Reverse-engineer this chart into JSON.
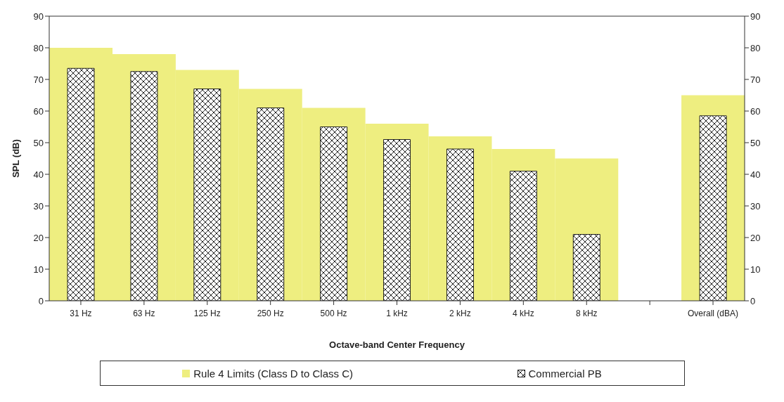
{
  "chart_data": {
    "type": "bar",
    "xlabel": "Octave-band Center Frequency",
    "ylabel": "SPL (dB)",
    "categories": [
      "31 Hz",
      "63 Hz",
      "125 Hz",
      "250 Hz",
      "500 Hz",
      "1 kHz",
      "2 kHz",
      "4 kHz",
      "8 kHz",
      null,
      "Overall (dBA)"
    ],
    "series": [
      {
        "name": "Rule 4 Limits (Class D to Class C)",
        "color": "#eeee80",
        "values": [
          80,
          78,
          73,
          67,
          61,
          56,
          52,
          48,
          45,
          null,
          65
        ]
      },
      {
        "name": "Commercial PB",
        "color": "#222222",
        "values": [
          73.5,
          72.5,
          67,
          61,
          55,
          51,
          48,
          41,
          21,
          null,
          58.5
        ]
      }
    ],
    "ylim": [
      0,
      90
    ],
    "yticks": [
      0,
      10,
      20,
      30,
      40,
      50,
      60,
      70,
      80,
      90
    ],
    "y2lim": [
      0,
      90
    ],
    "y2ticks": [
      0,
      10,
      20,
      30,
      40,
      50,
      60,
      70,
      80,
      90
    ],
    "legend": "bottom"
  }
}
